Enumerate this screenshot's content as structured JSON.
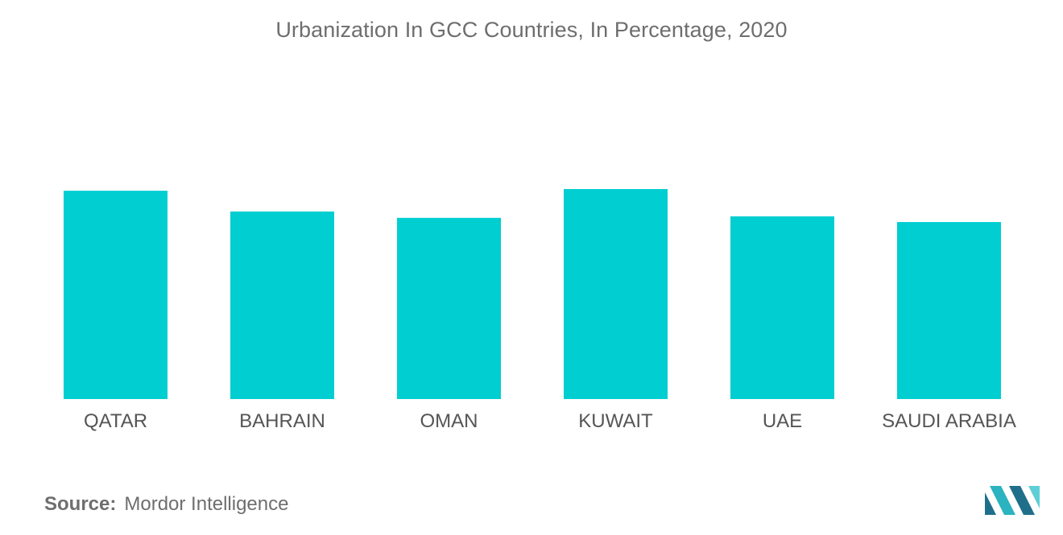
{
  "title": "Urbanization In GCC Countries, In Percentage, 2020",
  "source": {
    "label": "Source:",
    "text": "Mordor Intelligence"
  },
  "logo": {
    "icon": "mordor-intelligence-logo",
    "colors": [
      "#1f6f8b",
      "#2bb3c0",
      "#5ecfd6"
    ]
  },
  "chart_data": {
    "type": "bar",
    "title": "Urbanization In GCC Countries, In Percentage, 2020",
    "xlabel": "",
    "ylabel": "",
    "categories": [
      "QATAR",
      "BAHRAIN",
      "OMAN",
      "KUWAIT",
      "UAE",
      "SAUDI ARABIA"
    ],
    "values": [
      99.2,
      89.3,
      86.3,
      100,
      87.0,
      84.3
    ],
    "ylim": [
      0,
      100
    ],
    "bar_color": "#00ced1",
    "grid": false,
    "legend": "none"
  }
}
